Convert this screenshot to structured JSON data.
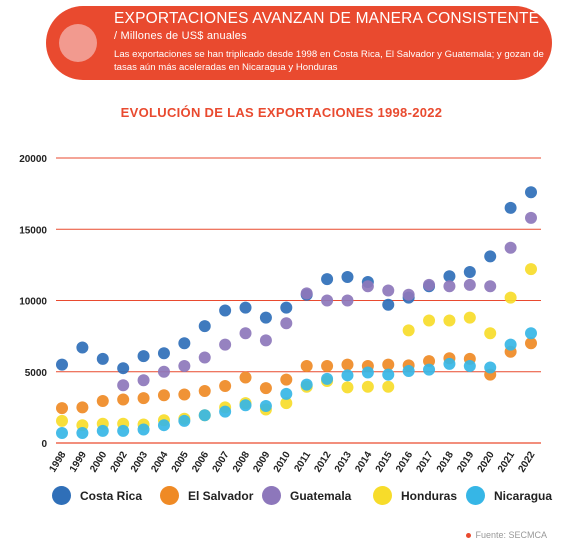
{
  "banner": {
    "title": "EXPORTACIONES AVANZAN DE MANERA CONSISTENTE",
    "subtitle": "/ Millones de US$ anuales",
    "description": "Las exportaciones se han triplicado desde 1998 en Costa Rica, El Salvador y Guatemala; y gozan de tasas aún más aceleradas en Nicaragua y Honduras"
  },
  "source": "Fuente: SECMCA",
  "colors": {
    "accent": "#e94a2f",
    "grid": "#e94a2f"
  },
  "chart_data": {
    "type": "scatter",
    "title": "EVOLUCIÓN DE LAS EXPORTACIONES 1998-2022",
    "xlabel": "",
    "ylabel": "",
    "ylim": [
      0,
      20000
    ],
    "yticks": [
      0,
      5000,
      10000,
      15000,
      20000
    ],
    "categories": [
      "1998",
      "1999",
      "2000",
      "2002",
      "2003",
      "2004",
      "2005",
      "2006",
      "2007",
      "2008",
      "2009",
      "2010",
      "2011",
      "2012",
      "2013",
      "2014",
      "2015",
      "2016",
      "2017",
      "2018",
      "2019",
      "2020",
      "2021",
      "2022"
    ],
    "legend_position": "bottom",
    "series": [
      {
        "name": "Costa Rica",
        "color": "#2f6fb8",
        "values": [
          5500,
          6700,
          5900,
          5250,
          6100,
          6300,
          7000,
          8200,
          9300,
          9500,
          8800,
          9500,
          10400,
          11500,
          11650,
          11300,
          9700,
          10200,
          11000,
          11700,
          12000,
          13100,
          16500,
          17600
        ]
      },
      {
        "name": "El Salvador",
        "color": "#ef8a25",
        "values": [
          2450,
          2500,
          2950,
          3050,
          3150,
          3350,
          3400,
          3650,
          4000,
          4600,
          3850,
          4450,
          5400,
          5400,
          5500,
          5400,
          5500,
          5450,
          5750,
          5950,
          5900,
          4800,
          6400,
          7000
        ]
      },
      {
        "name": "Guatemala",
        "color": "#8d77bb",
        "values": [
          null,
          null,
          null,
          4050,
          4400,
          5000,
          5400,
          6000,
          6900,
          7700,
          7200,
          8400,
          10500,
          10000,
          10000,
          11000,
          10700,
          10400,
          11100,
          11000,
          11100,
          11000,
          13700,
          15800
        ]
      },
      {
        "name": "Honduras",
        "color": "#f7dc2a",
        "values": [
          1550,
          1250,
          1350,
          1350,
          1300,
          1600,
          1700,
          1950,
          2500,
          2800,
          2350,
          2800,
          3950,
          4350,
          3900,
          3950,
          3950,
          7900,
          8600,
          8600,
          8800,
          7700,
          10200,
          12200
        ]
      },
      {
        "name": "Nicaragua",
        "color": "#36b6e6",
        "values": [
          700,
          700,
          850,
          850,
          950,
          1250,
          1550,
          1950,
          2200,
          2650,
          2600,
          3450,
          4100,
          4500,
          4750,
          4950,
          4800,
          5050,
          5150,
          5550,
          5400,
          5300,
          6900,
          7700
        ]
      }
    ]
  }
}
